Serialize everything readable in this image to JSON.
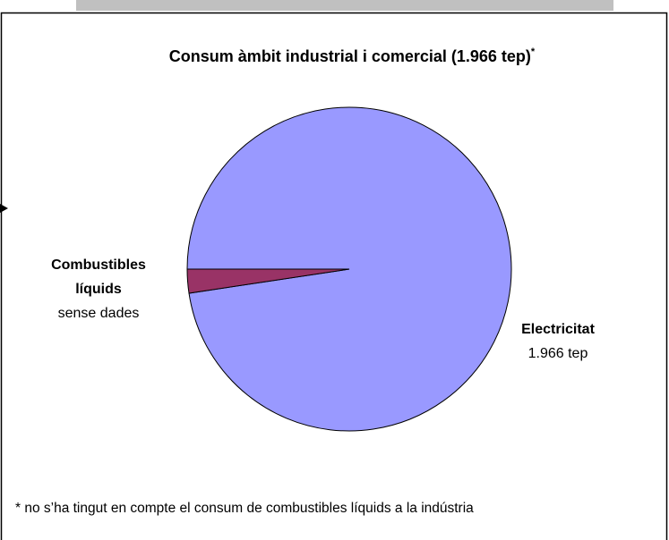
{
  "chart_data": {
    "type": "pie",
    "title": "Consum àmbit industrial i comercial (1.966 tep)",
    "title_note": "*",
    "categories": [
      "Electricitat",
      "Combustibles líquids"
    ],
    "values": [
      1966,
      48
    ],
    "value_labels": [
      "1.966 tep",
      "sense dades"
    ],
    "colors": [
      "#9999ff",
      "#993366"
    ],
    "footnote": "* no s’ha tingut en compte el consum de combustibles líquids a la indústria"
  }
}
